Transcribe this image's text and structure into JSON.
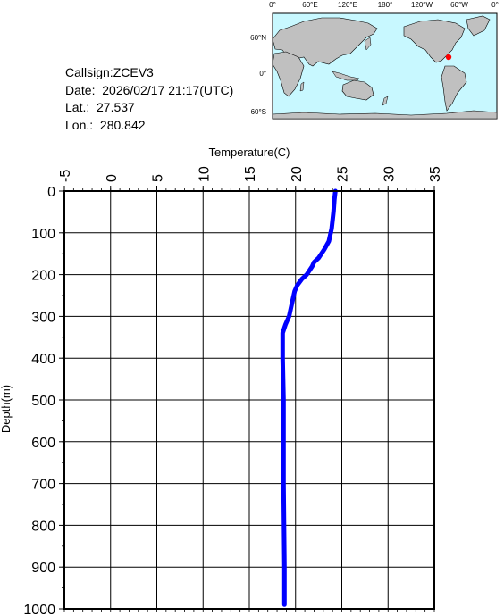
{
  "info": {
    "callsign": "Callsign:ZCEV3",
    "date": "Date:  2026/02/17 21:17(UTC)",
    "lat": "Lat.:  27.537",
    "lon": "Lon.:  280.842"
  },
  "map": {
    "top_labels": [
      "0°",
      "60°E",
      "120°E",
      "180°",
      "120°W",
      "60°W",
      "0°"
    ],
    "left_labels": [
      "60°N",
      "0°",
      "60°S"
    ],
    "ocean_color": "#c8f8ff",
    "land_color": "#c0c0c0",
    "marker_color": "#ff0000"
  },
  "chart_data": {
    "type": "line",
    "xlabel": "Temperature(C)",
    "ylabel": "Depth(m)",
    "xlim": [
      -5,
      35
    ],
    "ylim": [
      0,
      1000
    ],
    "y_inverted": true,
    "x_axis_position": "top",
    "x_ticks": [
      "-5",
      "0",
      "5",
      "10",
      "15",
      "20",
      "25",
      "30",
      "35"
    ],
    "y_ticks": [
      "0",
      "100",
      "200",
      "300",
      "400",
      "500",
      "600",
      "700",
      "800",
      "900",
      "1000"
    ],
    "grid": true,
    "series": [
      {
        "color": "#0000ff",
        "x": [
          24.3,
          24.2,
          24.1,
          23.9,
          23.6,
          23.1,
          22.5,
          22.0,
          21.8,
          21.2,
          20.7,
          20.2,
          19.9,
          19.7,
          19.3,
          18.9,
          18.6,
          18.6,
          18.6,
          18.7,
          18.7,
          18.8,
          18.8
        ],
        "y": [
          0,
          20,
          50,
          90,
          120,
          140,
          160,
          170,
          180,
          200,
          210,
          225,
          240,
          260,
          300,
          320,
          340,
          360,
          400,
          500,
          700,
          900,
          990
        ]
      }
    ]
  }
}
